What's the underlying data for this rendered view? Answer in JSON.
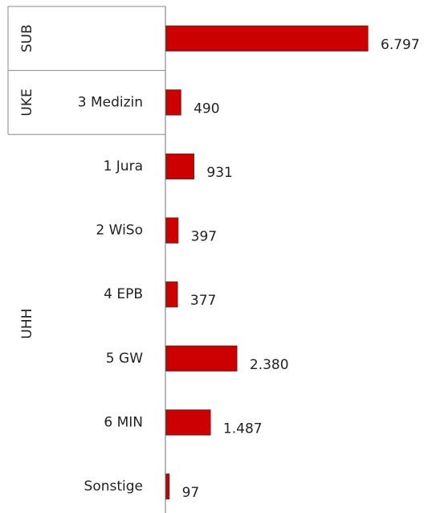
{
  "chart_data": {
    "type": "bar",
    "orientation": "horizontal",
    "categories": [
      null,
      "3 Medizin",
      "1 Jura",
      "2 WiSo",
      "4 EPB",
      "5 GW",
      "6 MIN",
      "Sonstige"
    ],
    "values": [
      6797,
      490,
      931,
      397,
      377,
      2380,
      1487,
      97
    ],
    "value_labels": [
      "6.797",
      "490",
      "931",
      "397",
      "377",
      "2.380",
      "1.487",
      "97"
    ],
    "groups": [
      {
        "name": "SUB",
        "count": 1
      },
      {
        "name": "UKE",
        "count": 1
      },
      {
        "name": "UHH",
        "count": 6
      }
    ],
    "color": "#cc0000"
  }
}
